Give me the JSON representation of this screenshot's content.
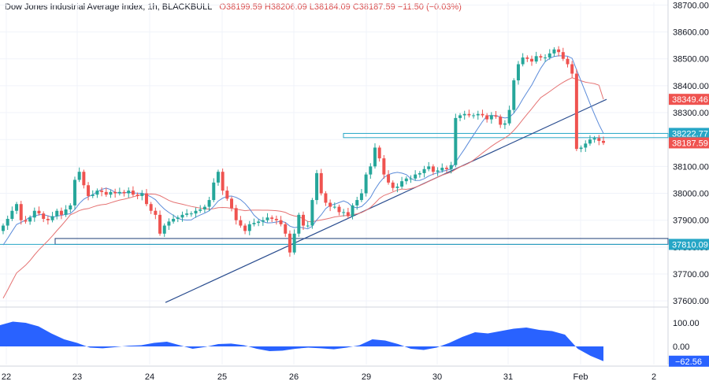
{
  "header": {
    "symbol": "Dow Jones Industrial Average Index, 1h, BLACKBULL",
    "open": "O38199.59",
    "high": "H38206.09",
    "low": "L38184.09",
    "close": "C38187.59",
    "change": "−11.50 (−0.03%)"
  },
  "colors": {
    "up": "#26a69a",
    "down": "#ef5350",
    "ma_fast": "#5b8bd9",
    "ma_slow": "#e57373",
    "trendline": "#2a4d8f",
    "level_blue": "#1f3f78",
    "level_cyan": "#26a6c6",
    "oscillator": "#2962ff"
  },
  "chart_data": {
    "type": "candlestick",
    "x_ticks": [
      "22",
      "23",
      "24",
      "25",
      "26",
      "29",
      "30",
      "31",
      "Feb",
      "2"
    ],
    "y_ticks": [
      37600,
      37700,
      37800,
      37900,
      38000,
      38100,
      38200,
      38300,
      38400,
      38500,
      38600,
      38700
    ],
    "y_tick_labels": [
      "37600.00",
      "37700.00",
      "37800.00",
      "37900.00",
      "38000.00",
      "38100.00",
      "38200.00",
      "38300.00",
      "38400.00",
      "38500.00",
      "38600.00",
      "38700.00"
    ],
    "ylim": [
      37580,
      38710
    ],
    "price_labels": [
      {
        "value": 38349.46,
        "label": "38349.46",
        "color": "#ef5350"
      },
      {
        "value": 38222.77,
        "label": "38222.77",
        "color": "#26a6c6"
      },
      {
        "value": 38187.59,
        "label": "38187.59",
        "color": "#ef5350"
      },
      {
        "value": 37810.09,
        "label": "37810.09",
        "color": "#26a6c6"
      }
    ],
    "horizontal_levels": [
      {
        "value": 37832,
        "color": "#1f3f78"
      },
      {
        "value": 37810.09,
        "color": "#26a6c6"
      },
      {
        "value": 38222.77,
        "color": "#26a6c6"
      },
      {
        "value": 38207,
        "color": "#26a6c6"
      }
    ],
    "candles_close": [
      37880,
      37905,
      37935,
      37960,
      37900,
      37895,
      37910,
      37935,
      37925,
      37905,
      37900,
      37915,
      37935,
      37920,
      37940,
      37955,
      38050,
      38080,
      38030,
      37990,
      37995,
      38010,
      38005,
      37995,
      38005,
      38000,
      38005,
      38000,
      38010,
      37995,
      37990,
      38000,
      37960,
      37935,
      37920,
      37850,
      37880,
      37895,
      37905,
      37910,
      37920,
      37925,
      37925,
      37935,
      37940,
      37950,
      37975,
      38040,
      38080,
      38010,
      37980,
      37945,
      37900,
      37880,
      37860,
      37885,
      37890,
      37895,
      37900,
      37910,
      37905,
      37900,
      37885,
      37850,
      37780,
      37850,
      37920,
      37880,
      37880,
      37975,
      38075,
      38000,
      37965,
      37950,
      37950,
      37930,
      37930,
      37915,
      37955,
      37975,
      38000,
      38070,
      38100,
      38170,
      38130,
      38070,
      38040,
      38020,
      38025,
      38045,
      38055,
      38055,
      38070,
      38075,
      38090,
      38100,
      38080,
      38085,
      38095,
      38090,
      38105,
      38280,
      38290,
      38295,
      38290,
      38290,
      38295,
      38290,
      38275,
      38290,
      38285,
      38255,
      38260,
      38310,
      38420,
      38480,
      38505,
      38500,
      38490,
      38510,
      38505,
      38505,
      38520,
      38535,
      38525,
      38500,
      38480,
      38445,
      38165,
      38170,
      38185,
      38200,
      38205,
      38195,
      38187.59
    ],
    "fast_ma_end": 38222.77,
    "slow_ma_end": 38349.46,
    "trendline": {
      "start_value": 37594,
      "end_value": 38349.46
    },
    "oscillator": {
      "ticks": [
        100,
        0
      ],
      "tick_labels": [
        "100.00",
        "0.00"
      ],
      "current_label": "−62.56",
      "current_value": -62.56,
      "values": [
        90,
        105,
        100,
        85,
        55,
        30,
        15,
        -5,
        -8,
        -3,
        3,
        5,
        15,
        20,
        5,
        -10,
        -2,
        10,
        12,
        5,
        -10,
        -20,
        -18,
        -10,
        -5,
        -8,
        -12,
        -5,
        5,
        30,
        25,
        10,
        -10,
        -15,
        -5,
        15,
        40,
        60,
        55,
        65,
        75,
        80,
        70,
        65,
        50,
        -10,
        -40,
        -62.56
      ]
    }
  }
}
